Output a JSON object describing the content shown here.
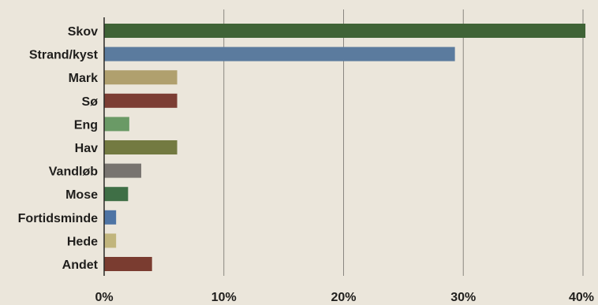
{
  "chart_data": {
    "type": "bar",
    "orientation": "horizontal",
    "title": "",
    "xlabel": "",
    "ylabel": "",
    "xlim": [
      0,
      40
    ],
    "x_ticks": [
      0,
      10,
      20,
      30,
      40
    ],
    "x_tick_labels": [
      "0%",
      "10%",
      "20%",
      "30%",
      "40%"
    ],
    "grid": "vertical",
    "legend": "none",
    "categories": [
      "Skov",
      "Strand/kyst",
      "Mark",
      "Sø",
      "Eng",
      "Hav",
      "Vandløb",
      "Mose",
      "Fortidsminde",
      "Hede",
      "Andet"
    ],
    "values": [
      40.2,
      29.3,
      6.1,
      6.1,
      2.1,
      6.1,
      3.1,
      2.0,
      1.0,
      1.0,
      4.0
    ],
    "colors": [
      "#3f6336",
      "#5b7b9e",
      "#b0a06e",
      "#7c3e34",
      "#6a9a66",
      "#737a41",
      "#787470",
      "#3f6f46",
      "#4e74a4",
      "#c1b57c",
      "#7a3c30"
    ]
  }
}
